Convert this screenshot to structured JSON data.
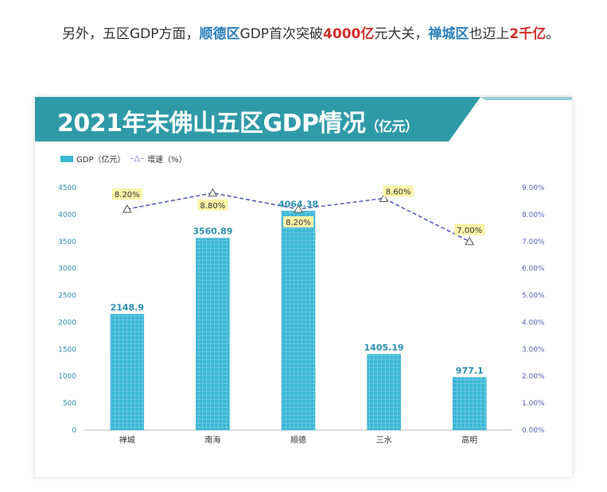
{
  "paragraph": {
    "t1": "另外，五区GDP方面，",
    "h1": "顺德区",
    "t2": "GDP首次突破",
    "h2": "4000亿",
    "t3": "元大关，",
    "h3": "禅城区",
    "t4": "也迈上",
    "h4": "2千亿",
    "t5": "。"
  },
  "banner": {
    "title": "2021年末佛山五区GDP情况",
    "unit": "（亿元）"
  },
  "legend": {
    "bar_label": "GDP（亿元）",
    "line_label": "增速（%）"
  },
  "colors": {
    "bar": "#3ab7d6",
    "banner": "#2e9aa8",
    "line": "#5a5fb8",
    "label_bg": "#fbf3a6",
    "accent_blue": "#2a7fb8",
    "accent_red": "#d0302b"
  },
  "chart_data": {
    "type": "bar",
    "categories": [
      "禅城",
      "南海",
      "顺德",
      "三水",
      "高明"
    ],
    "series": [
      {
        "name": "GDP（亿元）",
        "type": "bar",
        "axis": "left",
        "values": [
          2148.9,
          3560.89,
          4064.38,
          1405.19,
          977.1
        ],
        "labels": [
          "2148.9",
          "3560.89",
          "4064.38",
          "1405.19",
          "977.1"
        ]
      },
      {
        "name": "增速（%）",
        "type": "line",
        "axis": "right",
        "values": [
          8.2,
          8.8,
          8.2,
          8.6,
          7.0
        ],
        "labels": [
          "8.20%",
          "8.80%",
          "8.20%",
          "8.60%",
          "7.00%"
        ]
      }
    ],
    "y_left": {
      "min": 0,
      "max": 4500,
      "ticks": [
        "0",
        "500",
        "1000",
        "1500",
        "2000",
        "2500",
        "3000",
        "3500",
        "4000",
        "4500"
      ]
    },
    "y_right": {
      "min": 0,
      "max": 9,
      "ticks": [
        "0.00%",
        "1.00%",
        "2.00%",
        "3.00%",
        "4.00%",
        "5.00%",
        "6.00%",
        "7.00%",
        "8.00%",
        "9.00%"
      ]
    },
    "legend_position": "top-left"
  }
}
